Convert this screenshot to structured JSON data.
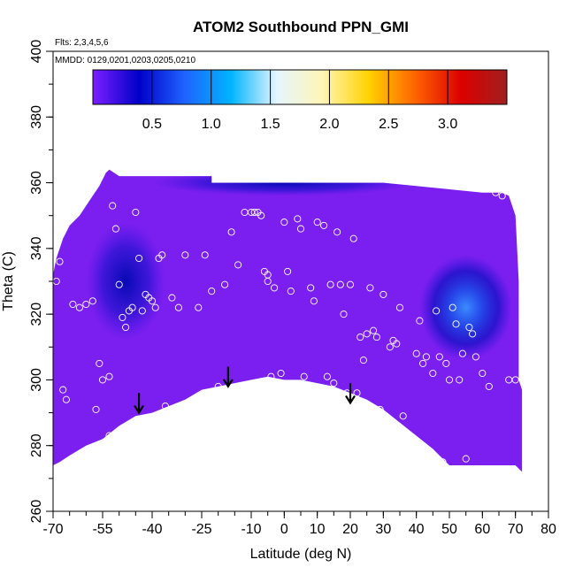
{
  "chart_data": {
    "type": "heatmap",
    "title": "ATOM2 Southbound PPN_GMI",
    "flights_note": "Flts: 2,3,4,5,6",
    "dates_note": "MMDD: 0129,0201,0203,0205,0210",
    "xlabel": "Latitude (deg N)",
    "ylabel": "Theta (C)",
    "xlim": [
      -70,
      80
    ],
    "ylim": [
      260,
      400
    ],
    "x_ticks": [
      -70,
      -55,
      -40,
      -25,
      -10,
      0,
      10,
      20,
      30,
      40,
      50,
      60,
      70,
      80
    ],
    "x_tick_labels": [
      "-70",
      "-55",
      "-40",
      "-25",
      "-10",
      "0",
      "10",
      "20",
      "30",
      "40",
      "50",
      "60",
      "70",
      "80"
    ],
    "y_ticks": [
      260,
      280,
      300,
      320,
      340,
      360,
      380,
      400
    ],
    "y_tick_labels": [
      "260",
      "280",
      "300",
      "320",
      "340",
      "360",
      "380",
      "400"
    ],
    "colorbar": {
      "range": [
        0,
        3.5
      ],
      "ticks": [
        0.5,
        1.0,
        1.5,
        2.0,
        2.5,
        3.0
      ],
      "tick_labels": [
        "0.5",
        "1.0",
        "1.5",
        "2.0",
        "2.5",
        "3.0"
      ],
      "colors": [
        "#7a1fff",
        "#0000c8",
        "#1e64ff",
        "#00b4ff",
        "#e6f5ff",
        "#fff5b4",
        "#ffd200",
        "#ff6400",
        "#dc0000",
        "#a02020"
      ]
    },
    "background_color": "#7b1ff0",
    "features": [
      {
        "name": "enhancement-south",
        "x": -48,
        "y": 330,
        "rx": 12,
        "ry": 18,
        "value": 0.4
      },
      {
        "name": "enhancement-north",
        "x": 55,
        "y": 322,
        "rx": 14,
        "ry": 16,
        "value": 0.9
      },
      {
        "name": "enhancement-top",
        "x": 0,
        "y": 360,
        "rx": 40,
        "ry": 4,
        "value": 0.35
      }
    ],
    "arrows": [
      {
        "x": -44,
        "y_top": 296,
        "y_tip": 290
      },
      {
        "x": -17,
        "y_top": 304,
        "y_tip": 298
      },
      {
        "x": 20,
        "y_top": 299,
        "y_tip": 293
      }
    ],
    "points": [
      [
        -69,
        330
      ],
      [
        -68,
        336
      ],
      [
        -67,
        297
      ],
      [
        -66,
        294
      ],
      [
        -64,
        323
      ],
      [
        -62,
        322
      ],
      [
        -60,
        323
      ],
      [
        -58,
        324
      ],
      [
        -57,
        291
      ],
      [
        -56,
        305
      ],
      [
        -55,
        300
      ],
      [
        -54,
        281
      ],
      [
        -53,
        301
      ],
      [
        -53,
        283
      ],
      [
        -52,
        353
      ],
      [
        -51,
        346
      ],
      [
        -50,
        329
      ],
      [
        -49,
        319
      ],
      [
        -48,
        316
      ],
      [
        -47,
        321
      ],
      [
        -46,
        322
      ],
      [
        -45,
        351
      ],
      [
        -44,
        337
      ],
      [
        -43,
        321
      ],
      [
        -42,
        326
      ],
      [
        -41,
        325
      ],
      [
        -40,
        324
      ],
      [
        -39,
        322
      ],
      [
        -38,
        337
      ],
      [
        -37,
        338
      ],
      [
        -36,
        292
      ],
      [
        -34,
        325
      ],
      [
        -32,
        322
      ],
      [
        -30,
        338
      ],
      [
        -28,
        293
      ],
      [
        -26,
        322
      ],
      [
        -24,
        338
      ],
      [
        -22,
        327
      ],
      [
        -20,
        298
      ],
      [
        -18,
        329
      ],
      [
        -16,
        345
      ],
      [
        -14,
        335
      ],
      [
        -12,
        351
      ],
      [
        -10,
        351
      ],
      [
        -9,
        351
      ],
      [
        -8,
        351
      ],
      [
        -7,
        350
      ],
      [
        -6,
        333
      ],
      [
        -5,
        332
      ],
      [
        -5,
        330
      ],
      [
        -4,
        301
      ],
      [
        -3,
        328
      ],
      [
        -1,
        302
      ],
      [
        0,
        348
      ],
      [
        1,
        333
      ],
      [
        2,
        327
      ],
      [
        4,
        349
      ],
      [
        5,
        346
      ],
      [
        6,
        301
      ],
      [
        8,
        328
      ],
      [
        9,
        324
      ],
      [
        10,
        348
      ],
      [
        12,
        347
      ],
      [
        13,
        301
      ],
      [
        14,
        329
      ],
      [
        15,
        299
      ],
      [
        16,
        345
      ],
      [
        17,
        329
      ],
      [
        18,
        320
      ],
      [
        19,
        296
      ],
      [
        20,
        329
      ],
      [
        21,
        343
      ],
      [
        22,
        296
      ],
      [
        23,
        313
      ],
      [
        24,
        306
      ],
      [
        25,
        314
      ],
      [
        26,
        328
      ],
      [
        27,
        315
      ],
      [
        28,
        313
      ],
      [
        29,
        291
      ],
      [
        30,
        326
      ],
      [
        31,
        286
      ],
      [
        32,
        310
      ],
      [
        33,
        312
      ],
      [
        34,
        311
      ],
      [
        35,
        322
      ],
      [
        36,
        289
      ],
      [
        38,
        281
      ],
      [
        40,
        308
      ],
      [
        41,
        318
      ],
      [
        42,
        305
      ],
      [
        43,
        307
      ],
      [
        44,
        277
      ],
      [
        45,
        302
      ],
      [
        46,
        321
      ],
      [
        47,
        307
      ],
      [
        48,
        275
      ],
      [
        49,
        305
      ],
      [
        50,
        300
      ],
      [
        51,
        322
      ],
      [
        52,
        317
      ],
      [
        53,
        300
      ],
      [
        54,
        308
      ],
      [
        55,
        276
      ],
      [
        56,
        316
      ],
      [
        57,
        314
      ],
      [
        58,
        307
      ],
      [
        60,
        302
      ],
      [
        62,
        298
      ],
      [
        64,
        357
      ],
      [
        66,
        356
      ],
      [
        68,
        300
      ],
      [
        70,
        300
      ]
    ]
  }
}
